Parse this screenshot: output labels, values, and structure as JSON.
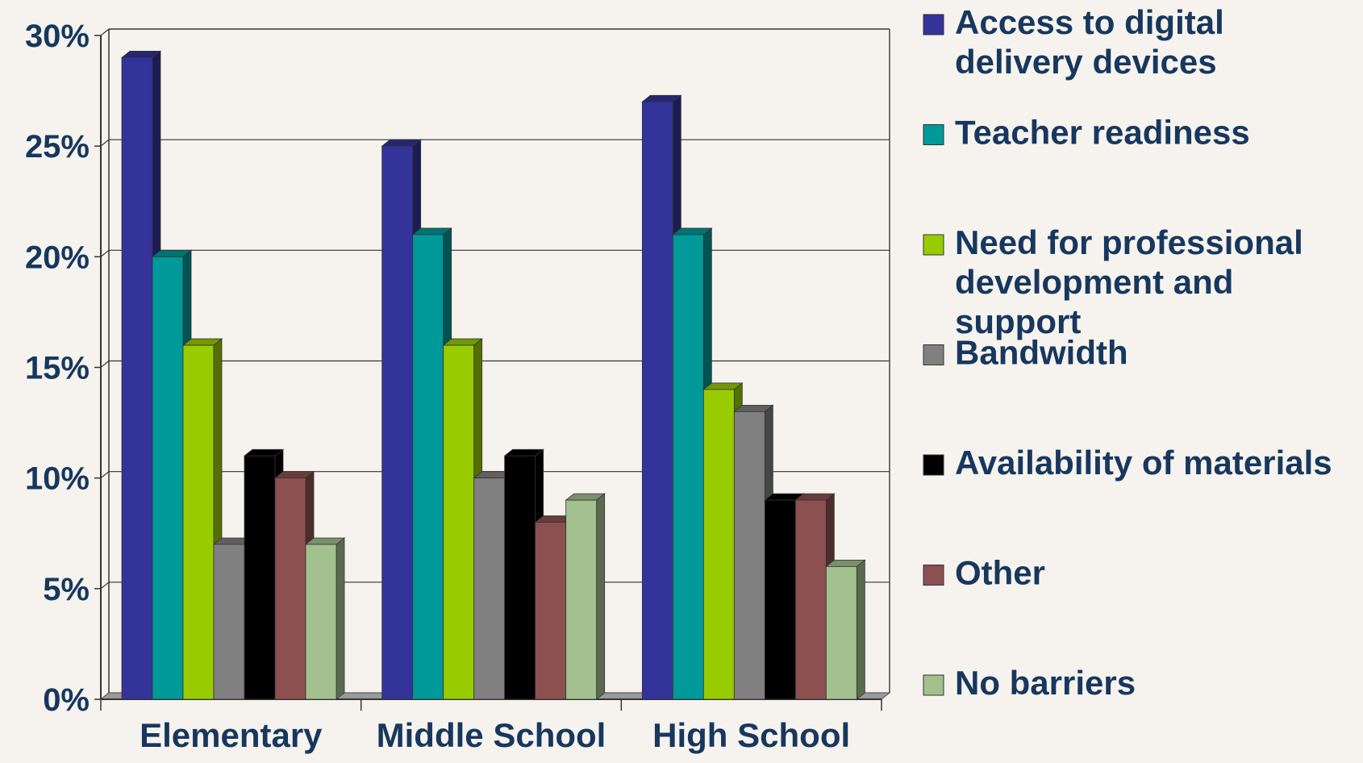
{
  "chart_data": {
    "type": "bar",
    "title": "",
    "xlabel": "",
    "ylabel": "",
    "categories": [
      "Elementary",
      "Middle School",
      "High School"
    ],
    "ylim": [
      0,
      30
    ],
    "yticks": [
      "0%",
      "5%",
      "10%",
      "15%",
      "20%",
      "25%",
      "30%"
    ],
    "grid": true,
    "legend_position": "right",
    "series": [
      {
        "name": "Access to digital delivery devices",
        "name_lines": [
          "Access to digital",
          "delivery devices"
        ],
        "values": [
          29,
          25,
          27
        ],
        "color": "#333399"
      },
      {
        "name": "Teacher readiness",
        "name_lines": [
          "Teacher readiness"
        ],
        "values": [
          20,
          21,
          21
        ],
        "color": "#009999"
      },
      {
        "name": "Need for professional development and support",
        "name_lines": [
          "Need for professional",
          "development and",
          "support"
        ],
        "values": [
          16,
          16,
          14
        ],
        "color": "#99cc00"
      },
      {
        "name": "Bandwidth",
        "name_lines": [
          "Bandwidth"
        ],
        "values": [
          7,
          10,
          13
        ],
        "color": "#808080"
      },
      {
        "name": "Availability of materials",
        "name_lines": [
          "Availability of materials"
        ],
        "values": [
          11,
          11,
          9
        ],
        "color": "#000000"
      },
      {
        "name": "Other",
        "name_lines": [
          "Other"
        ],
        "values": [
          10,
          8,
          9
        ],
        "color": "#8c5050"
      },
      {
        "name": "No barriers",
        "name_lines": [
          "No barriers"
        ],
        "values": [
          7,
          9,
          6
        ],
        "color": "#a3c08f"
      }
    ]
  }
}
